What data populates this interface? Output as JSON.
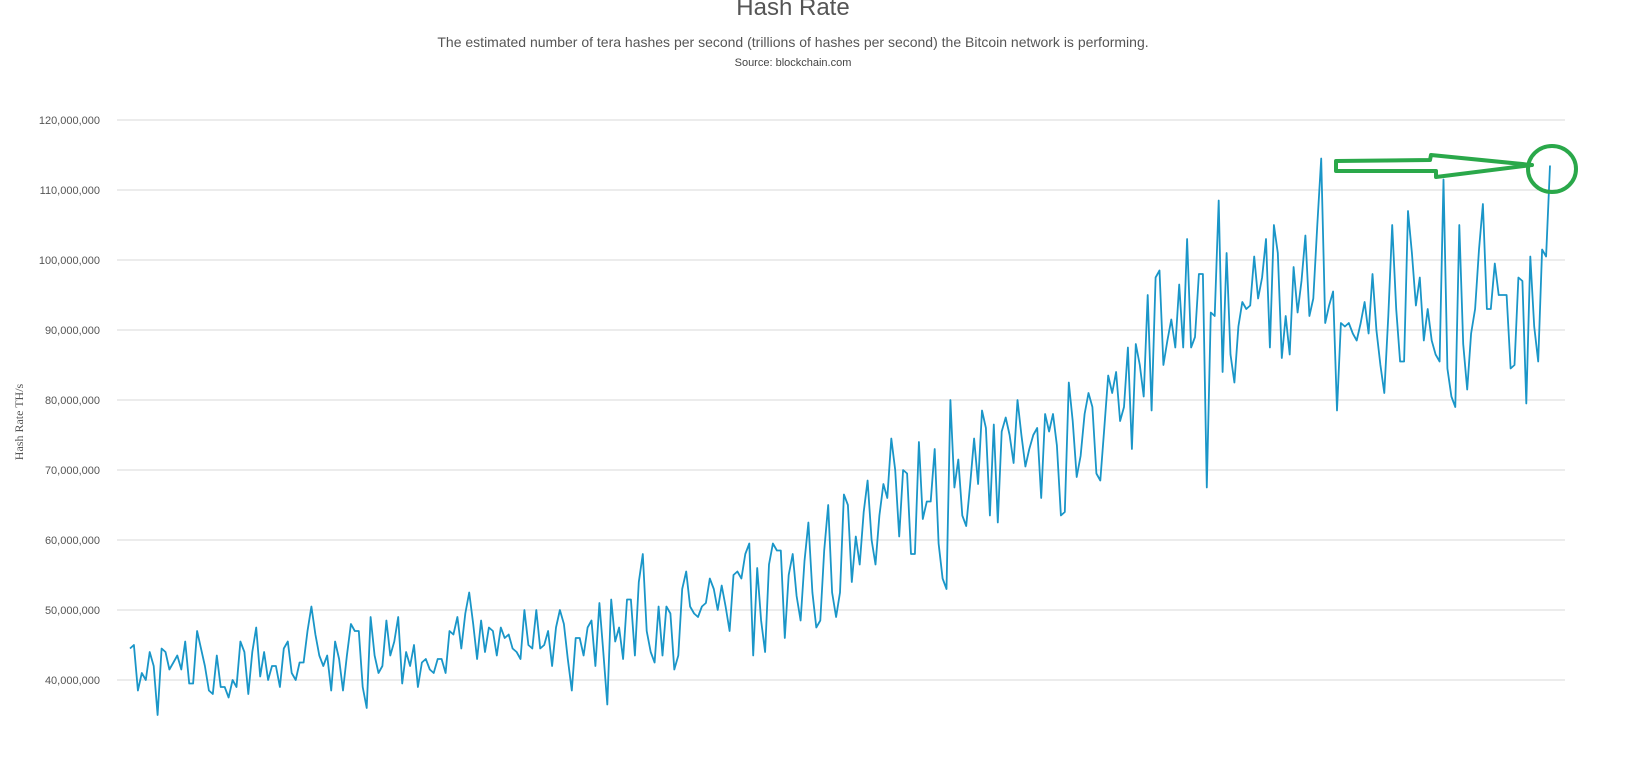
{
  "chart_data": {
    "type": "line",
    "title": "Hash Rate",
    "subtitle": "The estimated number of tera hashes per second (trillions of hashes per second) the Bitcoin network is performing.",
    "source": "Source: blockchain.com",
    "ylabel": "Hash Rate TH/s",
    "xlabel": "",
    "ylim": [
      35000000,
      120000000
    ],
    "y_ticks": [
      40000000,
      50000000,
      60000000,
      70000000,
      80000000,
      90000000,
      100000000,
      110000000,
      120000000
    ],
    "y_tick_labels": [
      "40,000,000",
      "50,000,000",
      "60,000,000",
      "70,000,000",
      "80,000,000",
      "90,000,000",
      "100,000,000",
      "110,000,000",
      "120,000,000"
    ],
    "grid": true,
    "series": [
      {
        "color": "#1a96c8",
        "values": [
          44.5,
          45,
          38.5,
          41,
          40,
          44,
          42,
          35,
          44.5,
          44,
          41.5,
          42.5,
          43.5,
          41.5,
          45.5,
          39.5,
          39.5,
          47,
          44.5,
          42,
          38.5,
          38,
          43.5,
          39,
          39,
          37.5,
          40,
          39,
          45.5,
          44,
          38,
          44,
          47.5,
          40.5,
          44,
          40,
          42,
          42,
          39,
          44.5,
          45.5,
          41,
          40,
          42.5,
          42.5,
          47,
          50.5,
          46.5,
          43.5,
          42,
          43.5,
          38.5,
          45.5,
          43,
          38.5,
          43.5,
          48,
          47,
          47,
          39,
          36,
          49,
          43.5,
          41,
          42,
          48.5,
          43.5,
          45.5,
          49,
          39.5,
          44,
          42,
          45,
          39,
          42.5,
          43,
          41.5,
          41,
          43,
          43,
          41,
          47,
          46.5,
          49,
          44.5,
          49.5,
          52.5,
          48,
          43,
          48.5,
          44,
          47.5,
          47,
          43.5,
          47.5,
          46,
          46.5,
          44.5,
          44,
          43,
          50,
          45,
          44.5,
          50,
          44.5,
          45,
          47,
          42,
          47.5,
          50,
          48,
          43,
          38.5,
          46,
          46,
          43.5,
          47.5,
          48.5,
          42,
          51,
          44,
          36.5,
          51.5,
          45.5,
          47.5,
          43,
          51.5,
          51.5,
          43.5,
          54,
          58,
          47,
          44,
          42.5,
          50.5,
          43.5,
          50.5,
          49.5,
          41.5,
          43.5,
          53,
          55.5,
          50.5,
          49.5,
          49,
          50.5,
          51,
          54.5,
          53,
          50,
          53.5,
          50.5,
          47,
          55,
          55.5,
          54.5,
          58,
          59.5,
          43.5,
          56,
          48.5,
          44,
          56.5,
          59.5,
          58.5,
          58.5,
          46,
          55,
          58,
          52,
          48.5,
          57,
          62.5,
          52.5,
          47.5,
          48.5,
          58.5,
          65,
          52.5,
          49,
          52.5,
          66.5,
          65,
          54,
          60.5,
          56.5,
          64,
          68.5,
          60,
          56.5,
          63.5,
          68,
          66,
          74.5,
          70,
          60.5,
          70,
          69.5,
          58,
          58,
          74,
          63,
          65.5,
          65.5,
          73,
          59.5,
          54.5,
          53,
          80,
          67.5,
          71.5,
          63.5,
          62,
          68,
          74.5,
          68,
          78.5,
          76,
          63.5,
          76.5,
          62.5,
          75.5,
          77.5,
          75,
          71,
          80,
          75,
          70.5,
          73,
          75,
          76,
          66,
          78,
          75.5,
          78,
          73.5,
          63.5,
          64,
          82.5,
          77,
          69,
          72,
          78,
          81,
          79,
          69.5,
          68.5,
          76,
          83.5,
          81,
          84,
          77,
          79,
          87.5,
          73,
          88,
          85,
          80.5,
          95,
          78.5,
          97.5,
          98.5,
          85,
          88.5,
          91.5,
          87.5,
          96.5,
          87.5,
          103,
          87.5,
          89,
          98,
          98,
          67.5,
          92.5,
          92,
          108.5,
          84,
          101,
          86.5,
          82.5,
          90.5,
          94,
          93,
          93.5,
          100.5,
          94.5,
          97.5,
          103,
          87.5,
          105,
          101,
          86,
          92,
          86.5,
          99,
          92.5,
          97,
          103.5,
          92,
          94.5,
          105,
          114.5,
          91,
          93.5,
          95.5,
          78.5,
          91,
          90.5,
          91,
          89.5,
          88.5,
          91,
          94,
          89.5,
          98,
          90,
          85,
          81,
          92,
          105,
          93,
          85.5,
          85.5,
          107,
          101,
          93.5,
          97.5,
          88.5,
          93,
          88.5,
          86.5,
          85.5,
          111.5,
          84.5,
          80.5,
          79,
          105,
          88,
          81.5,
          89.5,
          93,
          101.5,
          108,
          93,
          93,
          99.5,
          95,
          95,
          95,
          84.5,
          85,
          97.5,
          97,
          79.5,
          100.5,
          90.5,
          85.5,
          101.5,
          100.5,
          113.5
        ]
      }
    ],
    "values_unit": "million TH/s"
  },
  "annotation": {
    "color": "#2aa84a",
    "shapes": [
      "arrow",
      "circle"
    ]
  }
}
